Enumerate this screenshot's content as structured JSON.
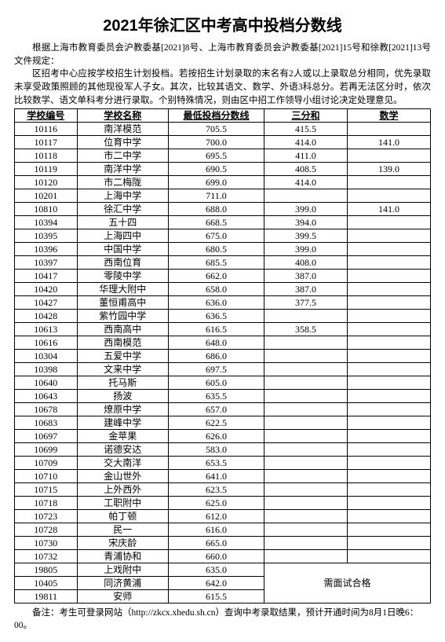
{
  "title": "2021年徐汇区中考高中投档分数线",
  "intro": {
    "p1": "根据上海市教育委员会沪教委基[2021]8号、上海市教育委员会沪教委基[2021]15号和徐教[2021]13号文件规定：",
    "p2": "区招考中心应按学校招生计划投档。若按招生计划录取的末名有2人或以上录取总分相同，优先录取未享受政策照顾的其他现役军人子女。其次，比较其语文、数学、外语3科总分。若再无法区分时，依次比较数学、语文单科考分进行录取。个别特殊情况，则由区中招工作领导小组讨论决定处理意见。"
  },
  "columns": [
    "学校编号",
    "学校名称",
    "最低投档分数线",
    "三分和",
    "数学"
  ],
  "rows": [
    [
      "10116",
      "南洋模范",
      "705.5",
      "415.5",
      ""
    ],
    [
      "10117",
      "位育中学",
      "700.0",
      "414.0",
      "141.0"
    ],
    [
      "10118",
      "市二中学",
      "695.5",
      "411.0",
      ""
    ],
    [
      "10119",
      "南洋中学",
      "690.5",
      "408.5",
      "139.0"
    ],
    [
      "10120",
      "市二梅陇",
      "699.0",
      "414.0",
      ""
    ],
    [
      "10201",
      "上海中学",
      "711.0",
      "",
      ""
    ],
    [
      "10810",
      "徐汇中学",
      "688.0",
      "399.0",
      "141.0"
    ],
    [
      "10394",
      "五十四",
      "668.5",
      "394.0",
      ""
    ],
    [
      "10395",
      "上海四中",
      "675.0",
      "399.5",
      ""
    ],
    [
      "10396",
      "中国中学",
      "680.5",
      "399.0",
      ""
    ],
    [
      "10397",
      "西南位育",
      "685.5",
      "408.0",
      ""
    ],
    [
      "10417",
      "零陵中学",
      "662.0",
      "387.0",
      ""
    ],
    [
      "10420",
      "华理大附中",
      "658.0",
      "387.0",
      ""
    ],
    [
      "10427",
      "董恒甫高中",
      "636.0",
      "377.5",
      ""
    ],
    [
      "10428",
      "紫竹园中学",
      "636.5",
      "",
      ""
    ],
    [
      "10613",
      "西南高中",
      "616.5",
      "358.5",
      ""
    ],
    [
      "10616",
      "西南模范",
      "648.0",
      "",
      ""
    ],
    [
      "10304",
      "五爱中学",
      "686.0",
      "",
      ""
    ],
    [
      "10398",
      "文来中学",
      "697.5",
      "",
      ""
    ],
    [
      "10640",
      "托马斯",
      "605.0",
      "",
      ""
    ],
    [
      "10643",
      "扬波",
      "635.5",
      "",
      ""
    ],
    [
      "10678",
      "燎原中学",
      "657.0",
      "",
      ""
    ],
    [
      "10683",
      "建峰中学",
      "622.5",
      "",
      ""
    ],
    [
      "10697",
      "金苹果",
      "626.0",
      "",
      ""
    ],
    [
      "10699",
      "诺德安达",
      "583.0",
      "",
      ""
    ],
    [
      "10709",
      "交大南洋",
      "653.5",
      "",
      ""
    ],
    [
      "10710",
      "金山世外",
      "641.0",
      "",
      ""
    ],
    [
      "10715",
      "上外西外",
      "623.5",
      "",
      ""
    ],
    [
      "10718",
      "工职附中",
      "625.0",
      "",
      ""
    ],
    [
      "10723",
      "帕丁顿",
      "612.0",
      "",
      ""
    ],
    [
      "10728",
      "民一",
      "616.0",
      "",
      ""
    ],
    [
      "10730",
      "宋庆龄",
      "665.0",
      "",
      ""
    ],
    [
      "10732",
      "青浦协和",
      "660.0",
      "",
      ""
    ]
  ],
  "rows_special": [
    [
      "19805",
      "上戏附中",
      "635.0"
    ],
    [
      "10405",
      "同济黄浦",
      "642.0"
    ],
    [
      "19811",
      "安师",
      "615.5"
    ]
  ],
  "special_note": "需面试合格",
  "footnote": "备注：考生可登录网站（http://zkcx.xhedu.sh.cn）查询中考录取结果，预计开通时间为8月1日晚6：00。",
  "style": {
    "title_fontsize": 20,
    "body_fontsize": 12,
    "border_color": "#000000",
    "background": "#ffffff"
  }
}
